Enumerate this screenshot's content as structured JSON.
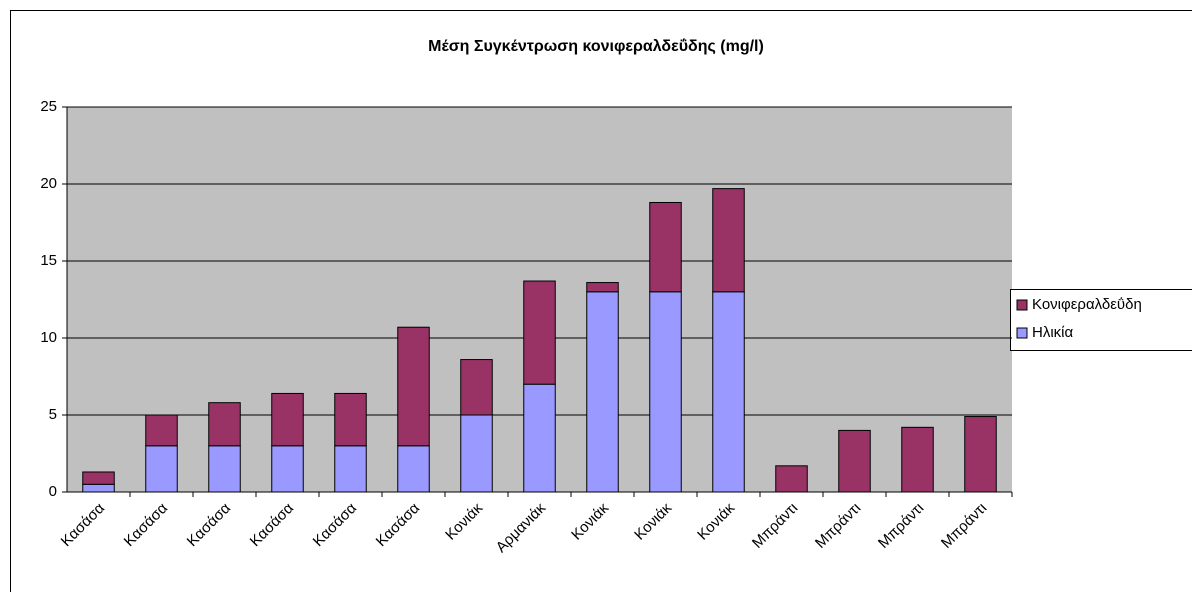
{
  "chart_data": {
    "type": "stacked_bar",
    "title": "Μέση  Συγκέντρωση κονιφεραλδεΰδης (mg/l)",
    "categories": [
      "Κασάσα",
      "Κασάσα",
      "Κασάσα",
      "Κασάσα",
      "Κασάσα",
      "Κασάσα",
      "Κονιάκ",
      "Αρμανιάκ",
      "Κονιάκ",
      "Κονιάκ",
      "Κονιάκ",
      "Μπράντι",
      "Μπράντι",
      "Μπράντι",
      "Μπράντι"
    ],
    "series": [
      {
        "name": "Ηλικία",
        "color": "#9999ff",
        "values": [
          0.5,
          3,
          3,
          3,
          3,
          3,
          5,
          7,
          13,
          13,
          13,
          0,
          0,
          0,
          0
        ]
      },
      {
        "name": "Κονιφεραλδεΰδη",
        "color": "#993366",
        "values": [
          0.8,
          2,
          2.8,
          3.4,
          3.4,
          7.7,
          3.6,
          6.7,
          0.6,
          5.8,
          6.7,
          1.7,
          4.0,
          4.2,
          4.9
        ]
      }
    ],
    "ylim": [
      0,
      25
    ],
    "yticks": [
      0,
      5,
      10,
      15,
      20,
      25
    ],
    "grid": true,
    "legend": "right"
  }
}
